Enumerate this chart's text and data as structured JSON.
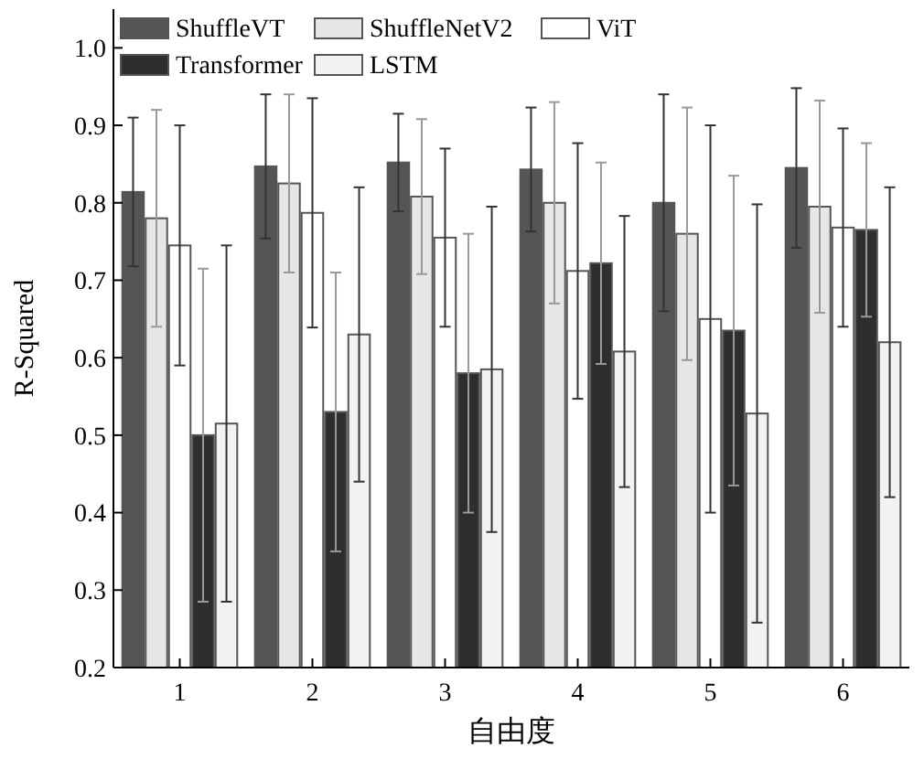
{
  "chart_data": {
    "type": "bar",
    "xlabel": "自由度",
    "ylabel": "R-Squared",
    "categories": [
      "1",
      "2",
      "3",
      "4",
      "5",
      "6"
    ],
    "ylim": [
      0.2,
      1.05
    ],
    "yticks": [
      {
        "value": 0.2,
        "label": "0.2"
      },
      {
        "value": 0.3,
        "label": "0.3"
      },
      {
        "value": 0.4,
        "label": "0.4"
      },
      {
        "value": 0.5,
        "label": "0.5"
      },
      {
        "value": 0.6,
        "label": "0.6"
      },
      {
        "value": 0.7,
        "label": "0.7"
      },
      {
        "value": 0.8,
        "label": "0.8"
      },
      {
        "value": 0.9,
        "label": "0.9"
      },
      {
        "value": 1.0,
        "label": "1.0"
      }
    ],
    "legend": "top left",
    "series": [
      {
        "name": "ShuffleVT",
        "color": "#555555",
        "values": [
          0.814,
          0.847,
          0.852,
          0.843,
          0.8,
          0.845
        ],
        "errors": [
          0.096,
          0.093,
          0.063,
          0.08,
          0.14,
          0.103
        ]
      },
      {
        "name": "ShuffleNetV2",
        "color": "#e6e6e6",
        "values": [
          0.78,
          0.825,
          0.808,
          0.8,
          0.76,
          0.795
        ],
        "errors": [
          0.14,
          0.115,
          0.1,
          0.13,
          0.163,
          0.137
        ]
      },
      {
        "name": "ViT",
        "color": "#ffffff",
        "values": [
          0.745,
          0.787,
          0.755,
          0.712,
          0.65,
          0.768
        ],
        "errors": [
          0.155,
          0.148,
          0.115,
          0.165,
          0.25,
          0.128
        ]
      },
      {
        "name": "Transformer",
        "color": "#2e2e2e",
        "values": [
          0.5,
          0.53,
          0.58,
          0.722,
          0.635,
          0.765
        ],
        "errors": [
          0.215,
          0.18,
          0.18,
          0.13,
          0.2,
          0.112
        ]
      },
      {
        "name": "LSTM",
        "color": "#f2f2f2",
        "values": [
          0.515,
          0.63,
          0.585,
          0.608,
          0.528,
          0.62
        ],
        "errors": [
          0.23,
          0.19,
          0.21,
          0.175,
          0.27,
          0.2
        ]
      }
    ]
  }
}
